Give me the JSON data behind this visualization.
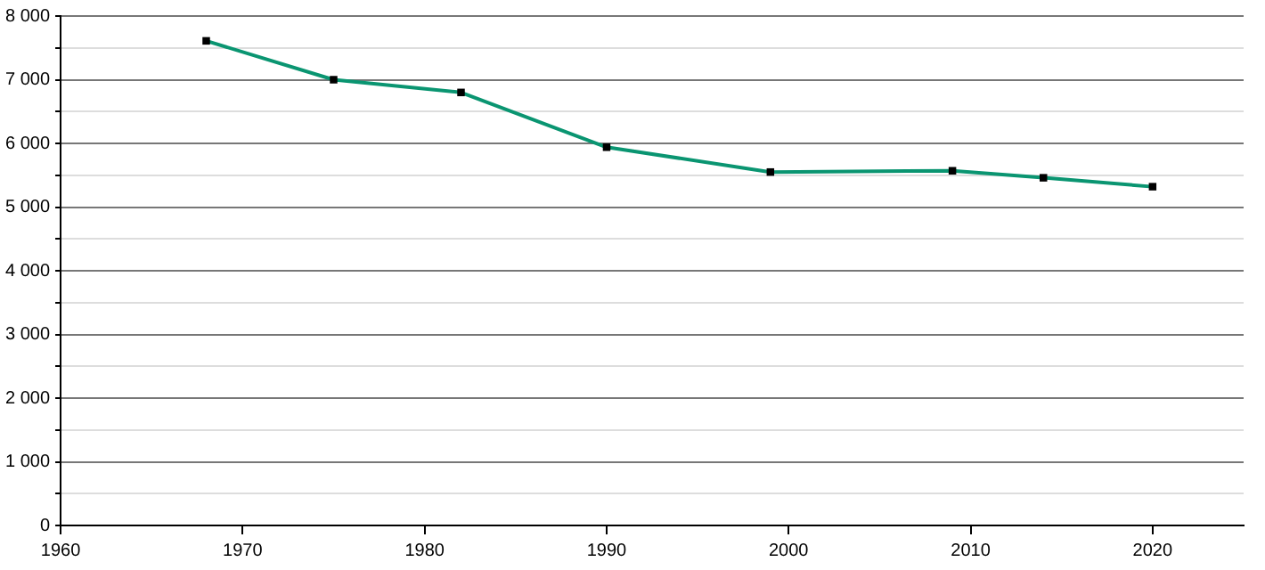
{
  "chart_data": {
    "type": "line",
    "x": [
      1968,
      1975,
      1982,
      1990,
      1999,
      2009,
      2014,
      2020
    ],
    "series": [
      {
        "color": "#0a9571",
        "values": [
          7610,
          7000,
          6800,
          5940,
          5550,
          5570,
          5460,
          5320
        ]
      }
    ],
    "xlim": [
      1960,
      2025
    ],
    "xticks": [
      1960,
      1970,
      1980,
      1990,
      2000,
      2010,
      2020
    ],
    "ylim": [
      0,
      8000
    ],
    "yticks": [
      0,
      {
        "value": 500,
        "label": null
      },
      {
        "value": 1000,
        "label": "1 000"
      },
      {
        "value": 1500,
        "label": null
      },
      {
        "value": 2000,
        "label": "2 000"
      },
      {
        "value": 2500,
        "label": null
      },
      {
        "value": 3000,
        "label": "3 000"
      },
      {
        "value": 3500,
        "label": null
      },
      {
        "value": 4000,
        "label": "4 000"
      },
      {
        "value": 4500,
        "label": null
      },
      {
        "value": 5000,
        "label": "5 000"
      },
      {
        "value": 5500,
        "label": null
      },
      {
        "value": 6000,
        "label": "6 000"
      },
      {
        "value": 6500,
        "label": null
      },
      {
        "value": 7000,
        "label": "7 000"
      },
      {
        "value": 7500,
        "label": null
      },
      {
        "value": 8000,
        "label": "8 000"
      }
    ],
    "grid": "y",
    "marker": "square",
    "line_style": "solid",
    "legend": false
  }
}
